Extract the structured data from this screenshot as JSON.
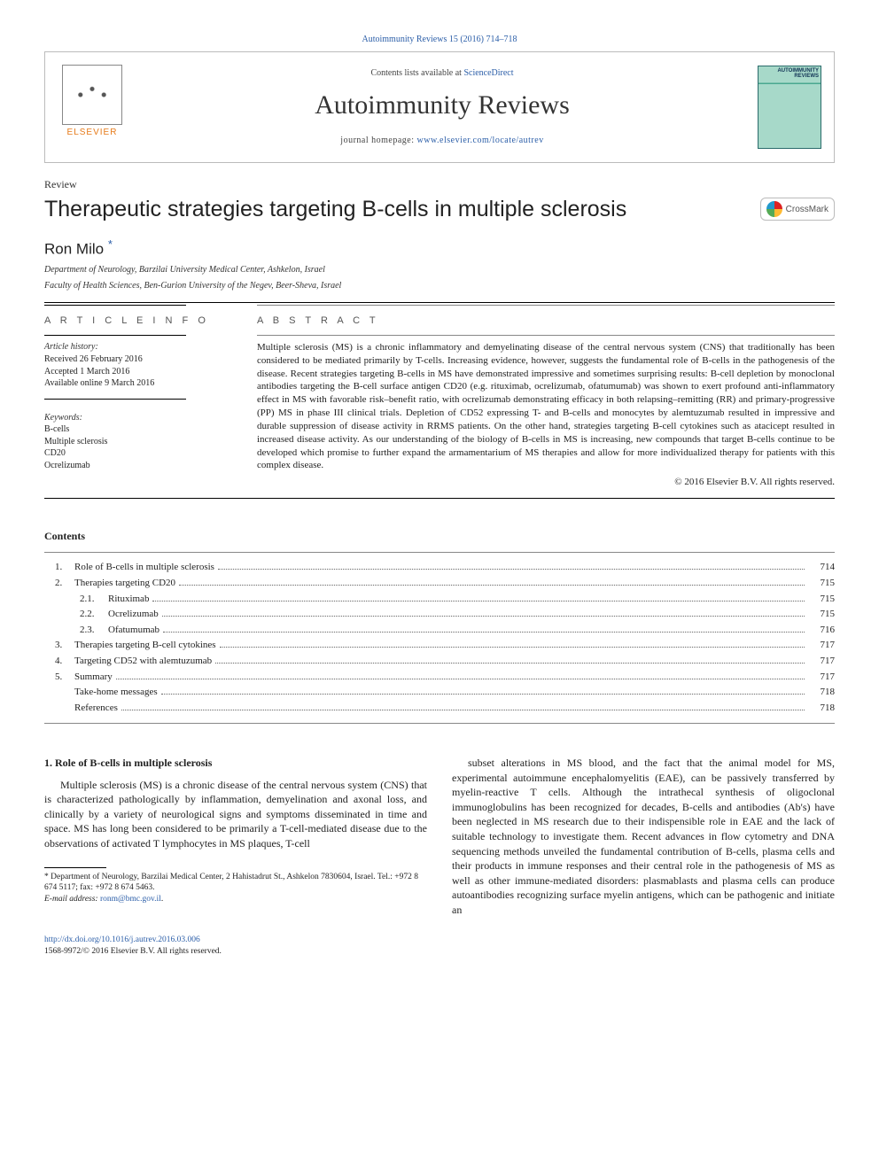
{
  "top_link": "Autoimmunity Reviews 15 (2016) 714–718",
  "header": {
    "brand": "ELSEVIER",
    "contents_prefix": "Contents lists available at ",
    "contents_link": "ScienceDirect",
    "journal_name": "Autoimmunity Reviews",
    "homepage_prefix": "journal homepage: ",
    "homepage_link": "www.elsevier.com/locate/autrev",
    "cover_title": "AUTOIMMUNITY\nREVIEWS"
  },
  "article": {
    "type": "Review",
    "title": "Therapeutic strategies targeting B-cells in multiple sclerosis",
    "crossmark": "CrossMark",
    "author": "Ron Milo",
    "author_mark": "*",
    "affil1": "Department of Neurology, Barzilai University Medical Center, Ashkelon, Israel",
    "affil2": "Faculty of Health Sciences, Ben-Gurion University of the Negev, Beer-Sheva, Israel"
  },
  "info": {
    "head": "A R T I C L E   I N F O",
    "history_head": "Article history:",
    "received": "Received 26 February 2016",
    "accepted": "Accepted 1 March 2016",
    "online": "Available online 9 March 2016",
    "kw_head": "Keywords:",
    "kw": [
      "B-cells",
      "Multiple sclerosis",
      "CD20",
      "Ocrelizumab"
    ]
  },
  "abstract": {
    "head": "A B S T R A C T",
    "text": "Multiple sclerosis (MS) is a chronic inflammatory and demyelinating disease of the central nervous system (CNS) that traditionally has been considered to be mediated primarily by T-cells. Increasing evidence, however, suggests the fundamental role of B-cells in the pathogenesis of the disease. Recent strategies targeting B-cells in MS have demonstrated impressive and sometimes surprising results: B-cell depletion by monoclonal antibodies targeting the B-cell surface antigen CD20 (e.g. rituximab, ocrelizumab, ofatumumab) was shown to exert profound anti-inflammatory effect in MS with favorable risk–benefit ratio, with ocrelizumab demonstrating efficacy in both relapsing–remitting (RR) and primary-progressive (PP) MS in phase III clinical trials. Depletion of CD52 expressing T- and B-cells and monocytes by alemtuzumab resulted in impressive and durable suppression of disease activity in RRMS patients. On the other hand, strategies targeting B-cell cytokines such as atacicept resulted in increased disease activity. As our understanding of the biology of B-cells in MS is increasing, new compounds that target B-cells continue to be developed which promise to further expand the armamentarium of MS therapies and allow for more individualized therapy for patients with this complex disease.",
    "copyright": "© 2016 Elsevier B.V. All rights reserved."
  },
  "toc": {
    "head": "Contents",
    "items": [
      {
        "num": "1.",
        "label": "Role of B-cells in multiple sclerosis",
        "page": "714",
        "indent": false
      },
      {
        "num": "2.",
        "label": "Therapies targeting CD20",
        "page": "715",
        "indent": false
      },
      {
        "num": "2.1.",
        "label": "Rituximab",
        "page": "715",
        "indent": true
      },
      {
        "num": "2.2.",
        "label": "Ocrelizumab",
        "page": "715",
        "indent": true
      },
      {
        "num": "2.3.",
        "label": "Ofatumumab",
        "page": "716",
        "indent": true
      },
      {
        "num": "3.",
        "label": "Therapies targeting B-cell cytokines",
        "page": "717",
        "indent": false
      },
      {
        "num": "4.",
        "label": "Targeting CD52 with alemtuzumab",
        "page": "717",
        "indent": false
      },
      {
        "num": "5.",
        "label": "Summary",
        "page": "717",
        "indent": false
      },
      {
        "num": "",
        "label": "Take-home messages",
        "page": "718",
        "indent": false
      },
      {
        "num": "",
        "label": "References",
        "page": "718",
        "indent": false
      }
    ]
  },
  "body": {
    "section_head": "1. Role of B-cells in multiple sclerosis",
    "col1": "Multiple sclerosis (MS) is a chronic disease of the central nervous system (CNS) that is characterized pathologically by inflammation, demyelination and axonal loss, and clinically by a variety of neurological signs and symptoms disseminated in time and space. MS has long been considered to be primarily a T-cell-mediated disease due to the observations of activated T lymphocytes in MS plaques, T-cell",
    "col2": "subset alterations in MS blood, and the fact that the animal model for MS, experimental autoimmune encephalomyelitis (EAE), can be passively transferred by myelin-reactive T cells. Although the intrathecal synthesis of oligoclonal immunoglobulins has been recognized for decades, B-cells and antibodies (Ab's) have been neglected in MS research due to their indispensible role in EAE and the lack of suitable technology to investigate them. Recent advances in flow cytometry and DNA sequencing methods unveiled the fundamental contribution of B-cells, plasma cells and their products in immune responses and their central role in the pathogenesis of MS as well as other immune-mediated disorders: plasmablasts and plasma cells can produce autoantibodies recognizing surface myelin antigens, which can be pathogenic and initiate an"
  },
  "footnote": {
    "corr": "* Department of Neurology, Barzilai Medical Center, 2 Hahistadrut St., Ashkelon 7830604, Israel. Tel.: +972 8 674 5117; fax: +972 8 674 5463.",
    "email_label": "E-mail address: ",
    "email": "ronm@bmc.gov.il"
  },
  "footer": {
    "doi": "http://dx.doi.org/10.1016/j.autrev.2016.03.006",
    "issn_copy": "1568-9972/© 2016 Elsevier B.V. All rights reserved."
  },
  "colors": {
    "link": "#2b5ea8",
    "brand": "#e77b1a",
    "text": "#222222",
    "rule": "#000000",
    "border": "#bbbbbb"
  }
}
